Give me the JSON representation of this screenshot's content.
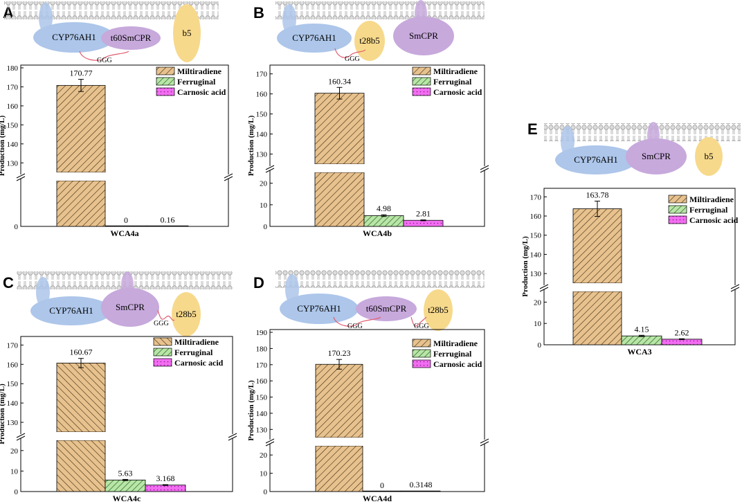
{
  "colors": {
    "miltiradiene_fill": "#e8c28e",
    "ferruginal_fill": "#b9e6a7",
    "carnosic_fill": "#f26df2",
    "cyp_fill": "#adc6ea",
    "cpr_fill": "#c7a9dc",
    "b5_fill": "#f7d98c",
    "linker": "#e05a6e",
    "membrane": "#a8a8a8"
  },
  "legend": [
    "Miltiradiene",
    "Ferruginal",
    "Carnosic acid"
  ],
  "y_axis_label": "Production (mg/L)",
  "linker_label": "GGG",
  "panels": [
    {
      "id": "A",
      "proteins": [
        "CYP76AH1",
        "t60SmCPR",
        "b5"
      ],
      "linkers": [
        "GGG"
      ],
      "chart_data": {
        "type": "bar",
        "category": "WCA4a",
        "series": [
          {
            "name": "Miltiradiene",
            "value": 170.77,
            "error": 3.2,
            "label": "170.77"
          },
          {
            "name": "Ferruginal",
            "value": 0,
            "error": 0,
            "label": "0"
          },
          {
            "name": "Carnosic acid",
            "value": 0.16,
            "error": 0,
            "label": "0.16"
          }
        ],
        "y_upper": [
          125,
          180
        ],
        "y_upper_ticks": [
          "130",
          "140",
          "150",
          "160",
          "170",
          "180"
        ],
        "y_lower": [
          0,
          25
        ],
        "y_lower_ticks": [
          "0"
        ],
        "ylabel": "Production (mg/L)"
      }
    },
    {
      "id": "B",
      "proteins": [
        "CYP76AH1",
        "t28b5",
        "SmCPR"
      ],
      "linkers": [
        "GGG"
      ],
      "chart_data": {
        "type": "bar",
        "category": "WCA4b",
        "series": [
          {
            "name": "Miltiradiene",
            "value": 160.34,
            "error": 2.9,
            "label": "160.34"
          },
          {
            "name": "Ferruginal",
            "value": 4.98,
            "error": 0.4,
            "label": "4.98"
          },
          {
            "name": "Carnosic acid",
            "value": 2.81,
            "error": 0.2,
            "label": "2.81"
          }
        ],
        "y_upper": [
          125,
          173
        ],
        "y_upper_ticks": [
          "130",
          "140",
          "150",
          "160",
          "170"
        ],
        "y_lower": [
          0,
          25
        ],
        "y_lower_ticks": [
          "0",
          "10",
          "20"
        ],
        "ylabel": "Production (mg/L)"
      }
    },
    {
      "id": "C",
      "proteins": [
        "CYP76AH1",
        "SmCPR",
        "t28b5"
      ],
      "linkers": [
        "GGG"
      ],
      "chart_data": {
        "type": "bar",
        "category": "WCA4c",
        "series": [
          {
            "name": "Miltiradiene",
            "value": 160.67,
            "error": 2.4,
            "label": "160.67"
          },
          {
            "name": "Ferruginal",
            "value": 5.63,
            "error": 0.3,
            "label": "5.63"
          },
          {
            "name": "Carnosic acid",
            "value": 3.168,
            "error": 0.2,
            "label": "3.168"
          }
        ],
        "y_upper": [
          125,
          173
        ],
        "y_upper_ticks": [
          "130",
          "140",
          "150",
          "160",
          "170"
        ],
        "y_lower": [
          0,
          25
        ],
        "y_lower_ticks": [
          "0",
          "10",
          "20"
        ],
        "ylabel": "Production (mg/L)"
      }
    },
    {
      "id": "D",
      "proteins": [
        "CYP76AH1",
        "t60SmCPR",
        "t28b5"
      ],
      "linkers": [
        "GGG",
        "GGG"
      ],
      "chart_data": {
        "type": "bar",
        "category": "WCA4d",
        "series": [
          {
            "name": "Miltiradiene",
            "value": 170.23,
            "error": 3.0,
            "label": "170.23"
          },
          {
            "name": "Ferruginal",
            "value": 0,
            "error": 0,
            "label": "0"
          },
          {
            "name": "Carnosic acid",
            "value": 0.3148,
            "error": 0,
            "label": "0.3148"
          }
        ],
        "y_upper": [
          125,
          190
        ],
        "y_upper_ticks": [
          "130",
          "140",
          "150",
          "160",
          "170",
          "180",
          "190"
        ],
        "y_lower": [
          0,
          25
        ],
        "y_lower_ticks": [
          "0",
          "10",
          "20"
        ],
        "ylabel": "Production (mg/L)"
      }
    },
    {
      "id": "E",
      "proteins": [
        "CYP76AH1",
        "SmCPR",
        "b5"
      ],
      "linkers": [],
      "chart_data": {
        "type": "bar",
        "category": "WCA3",
        "series": [
          {
            "name": "Miltiradiene",
            "value": 163.78,
            "error": 4.0,
            "label": "163.78"
          },
          {
            "name": "Ferruginal",
            "value": 4.15,
            "error": 0.3,
            "label": "4.15"
          },
          {
            "name": "Carnosic acid",
            "value": 2.62,
            "error": 0.2,
            "label": "2.62"
          }
        ],
        "y_upper": [
          125,
          173
        ],
        "y_upper_ticks": [
          "130",
          "140",
          "150",
          "160",
          "170"
        ],
        "y_lower": [
          0,
          25
        ],
        "y_lower_ticks": [
          "0",
          "10",
          "20"
        ],
        "ylabel": "Production (mg/L)"
      }
    }
  ]
}
